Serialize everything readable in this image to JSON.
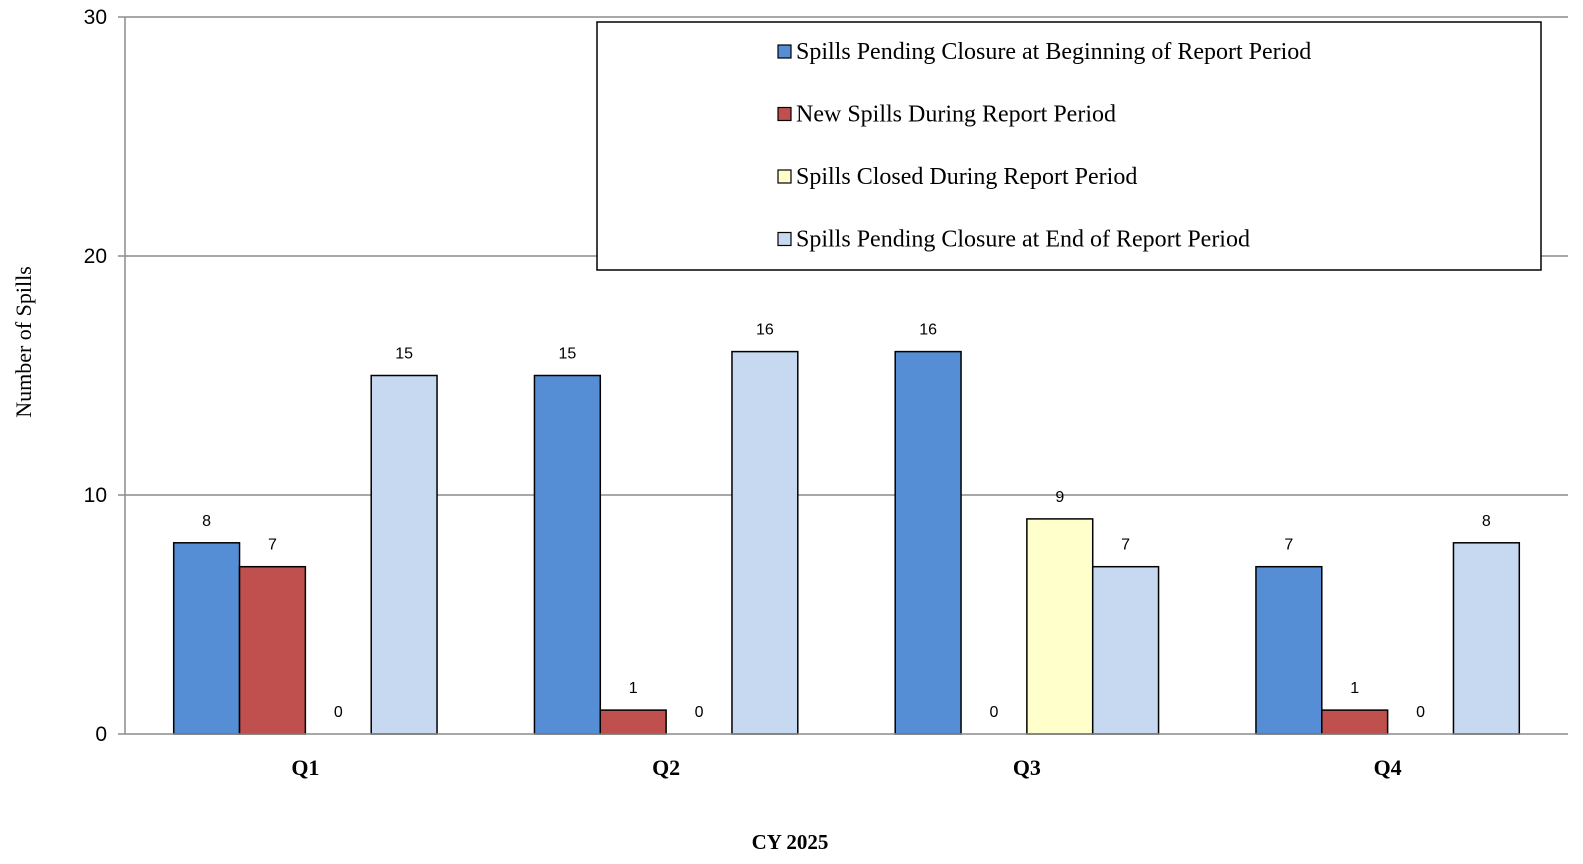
{
  "chart_data": {
    "type": "bar",
    "title": "",
    "xlabel": "CY 2025",
    "ylabel": "Number of Spills",
    "ylim": [
      0,
      30
    ],
    "yticks": [
      0,
      10,
      20,
      30
    ],
    "grid": true,
    "legend_position": "top-right",
    "categories": [
      "Q1",
      "Q2",
      "Q3",
      "Q4"
    ],
    "series": [
      {
        "name": "Spills Pending Closure at Beginning of Report Period",
        "color": "#558ED5",
        "values": [
          8,
          15,
          16,
          7
        ]
      },
      {
        "name": "New Spills During Report Period",
        "color": "#C0504D",
        "values": [
          7,
          1,
          0,
          1
        ]
      },
      {
        "name": "Spills Closed During Report Period",
        "color": "#FFFFCC",
        "values": [
          0,
          0,
          9,
          0
        ]
      },
      {
        "name": "Spills Pending Closure at End of Report Period",
        "color": "#C6D9F1",
        "values": [
          15,
          16,
          7,
          8
        ]
      }
    ]
  }
}
